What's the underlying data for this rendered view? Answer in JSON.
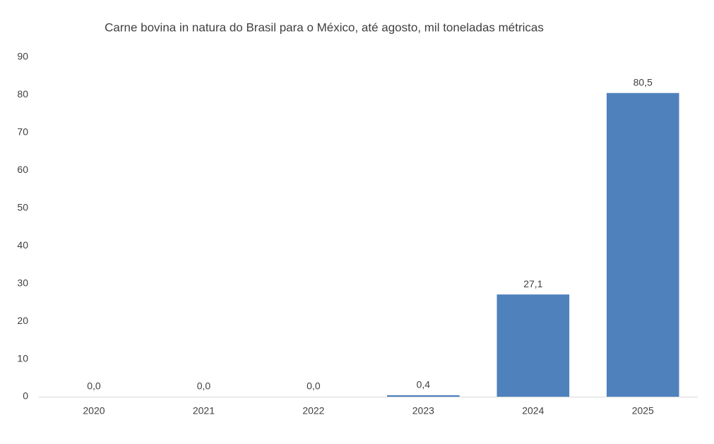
{
  "chart_data": {
    "type": "bar",
    "title": "Carne bovina in natura do Brasil para o México, até agosto, mil toneladas métricas",
    "categories": [
      "2020",
      "2021",
      "2022",
      "2023",
      "2024",
      "2025"
    ],
    "values": [
      0,
      0,
      0,
      0.4,
      27.1,
      80.5
    ],
    "value_labels": [
      "0,0",
      "0,0",
      "0,0",
      "0,4",
      "27,1",
      "80,5"
    ],
    "color": "#4f81bd",
    "ylim": [
      0,
      90
    ],
    "yticks": [
      0,
      10,
      20,
      30,
      40,
      50,
      60,
      70,
      80,
      90
    ],
    "grid": false
  }
}
